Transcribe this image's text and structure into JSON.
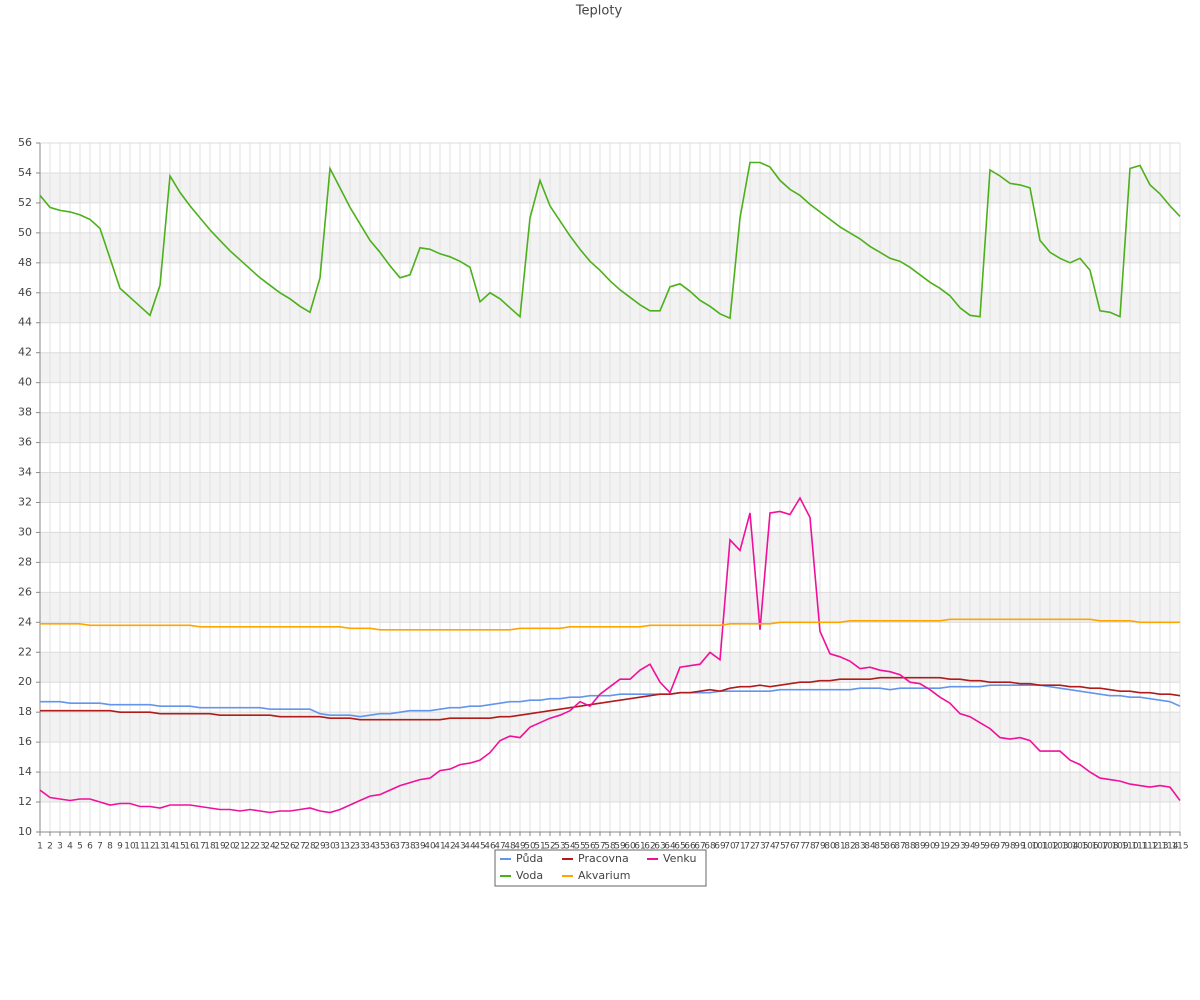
{
  "chart_data": {
    "type": "line",
    "title": "Teploty",
    "x": [
      1,
      2,
      3,
      4,
      5,
      6,
      7,
      8,
      9,
      10,
      11,
      12,
      13,
      14,
      15,
      16,
      17,
      18,
      19,
      20,
      21,
      22,
      23,
      24,
      25,
      26,
      27,
      28,
      29,
      30,
      31,
      32,
      33,
      34,
      35,
      36,
      37,
      38,
      39,
      40,
      41,
      42,
      43,
      44,
      45,
      46,
      47,
      48,
      49,
      50,
      51,
      52,
      53,
      54,
      55,
      56,
      57,
      58,
      59,
      60,
      61,
      62,
      63,
      64,
      65,
      66,
      67,
      68,
      69,
      70,
      71,
      72,
      73,
      74,
      75,
      76,
      77,
      78,
      79,
      80,
      81,
      82,
      83,
      84,
      85,
      86,
      87,
      88,
      89,
      90,
      91,
      92,
      93,
      94,
      95,
      96,
      97,
      98,
      99,
      100,
      101,
      102,
      103,
      104,
      105,
      106,
      107,
      108,
      109,
      110,
      111,
      112,
      113,
      114,
      115
    ],
    "xlim": [
      1,
      115
    ],
    "ylim": [
      10,
      56
    ],
    "yticks": [
      10,
      12,
      14,
      16,
      18,
      20,
      22,
      24,
      26,
      28,
      30,
      32,
      34,
      36,
      38,
      40,
      42,
      44,
      46,
      48,
      50,
      52,
      54,
      56
    ],
    "grid": true,
    "legend": "bottom",
    "series": [
      {
        "name": "Půda",
        "color": "#6495ed",
        "values": [
          18.7,
          18.7,
          18.7,
          18.6,
          18.6,
          18.6,
          18.6,
          18.5,
          18.5,
          18.5,
          18.5,
          18.5,
          18.4,
          18.4,
          18.4,
          18.4,
          18.3,
          18.3,
          18.3,
          18.3,
          18.3,
          18.3,
          18.3,
          18.2,
          18.2,
          18.2,
          18.2,
          18.2,
          17.9,
          17.8,
          17.8,
          17.8,
          17.7,
          17.8,
          17.9,
          17.9,
          18.0,
          18.1,
          18.1,
          18.1,
          18.2,
          18.3,
          18.3,
          18.4,
          18.4,
          18.5,
          18.6,
          18.7,
          18.7,
          18.8,
          18.8,
          18.9,
          18.9,
          19.0,
          19.0,
          19.1,
          19.1,
          19.1,
          19.2,
          19.2,
          19.2,
          19.2,
          19.2,
          19.2,
          19.3,
          19.3,
          19.3,
          19.3,
          19.4,
          19.4,
          19.4,
          19.4,
          19.4,
          19.4,
          19.5,
          19.5,
          19.5,
          19.5,
          19.5,
          19.5,
          19.5,
          19.5,
          19.6,
          19.6,
          19.6,
          19.5,
          19.6,
          19.6,
          19.6,
          19.6,
          19.6,
          19.7,
          19.7,
          19.7,
          19.7,
          19.8,
          19.8,
          19.8,
          19.8,
          19.8,
          19.8,
          19.7,
          19.6,
          19.5,
          19.4,
          19.3,
          19.2,
          19.1,
          19.1,
          19.0,
          19.0,
          18.9,
          18.8,
          18.7,
          18.4
        ]
      },
      {
        "name": "Pracovna",
        "color": "#b01c1c",
        "values": [
          18.1,
          18.1,
          18.1,
          18.1,
          18.1,
          18.1,
          18.1,
          18.1,
          18.0,
          18.0,
          18.0,
          18.0,
          17.9,
          17.9,
          17.9,
          17.9,
          17.9,
          17.9,
          17.8,
          17.8,
          17.8,
          17.8,
          17.8,
          17.8,
          17.7,
          17.7,
          17.7,
          17.7,
          17.7,
          17.6,
          17.6,
          17.6,
          17.5,
          17.5,
          17.5,
          17.5,
          17.5,
          17.5,
          17.5,
          17.5,
          17.5,
          17.6,
          17.6,
          17.6,
          17.6,
          17.6,
          17.7,
          17.7,
          17.8,
          17.9,
          18.0,
          18.1,
          18.2,
          18.3,
          18.4,
          18.5,
          18.6,
          18.7,
          18.8,
          18.9,
          19.0,
          19.1,
          19.2,
          19.2,
          19.3,
          19.3,
          19.4,
          19.5,
          19.4,
          19.6,
          19.7,
          19.7,
          19.8,
          19.7,
          19.8,
          19.9,
          20.0,
          20.0,
          20.1,
          20.1,
          20.2,
          20.2,
          20.2,
          20.2,
          20.3,
          20.3,
          20.3,
          20.3,
          20.3,
          20.3,
          20.3,
          20.2,
          20.2,
          20.1,
          20.1,
          20.0,
          20.0,
          20.0,
          19.9,
          19.9,
          19.8,
          19.8,
          19.8,
          19.7,
          19.7,
          19.6,
          19.6,
          19.5,
          19.4,
          19.4,
          19.3,
          19.3,
          19.2,
          19.2,
          19.1
        ]
      },
      {
        "name": "Venku",
        "color": "#f0109a",
        "values": [
          12.8,
          12.3,
          12.2,
          12.1,
          12.2,
          12.2,
          12.0,
          11.8,
          11.9,
          11.9,
          11.7,
          11.7,
          11.6,
          11.8,
          11.8,
          11.8,
          11.7,
          11.6,
          11.5,
          11.5,
          11.4,
          11.5,
          11.4,
          11.3,
          11.4,
          11.4,
          11.5,
          11.6,
          11.4,
          11.3,
          11.5,
          11.8,
          12.1,
          12.4,
          12.5,
          12.8,
          13.1,
          13.3,
          13.5,
          13.6,
          14.1,
          14.2,
          14.5,
          14.6,
          14.8,
          15.3,
          16.1,
          16.4,
          16.3,
          17.0,
          17.3,
          17.6,
          17.8,
          18.1,
          18.7,
          18.4,
          19.2,
          19.7,
          20.2,
          20.2,
          20.8,
          21.2,
          20.0,
          19.3,
          21.0,
          21.1,
          21.2,
          22.0,
          21.5,
          29.5,
          28.8,
          31.3,
          23.5,
          31.3,
          31.4,
          31.2,
          32.3,
          31.0,
          23.4,
          21.9,
          21.7,
          21.4,
          20.9,
          21.0,
          20.8,
          20.7,
          20.5,
          20.0,
          19.9,
          19.5,
          19.0,
          18.6,
          17.9,
          17.7,
          17.3,
          16.9,
          16.3,
          16.2,
          16.3,
          16.1,
          15.4,
          15.4,
          15.4,
          14.8,
          14.5,
          14.0,
          13.6,
          13.5,
          13.4,
          13.2,
          13.1,
          13.0,
          13.1,
          13.0,
          12.1
        ]
      },
      {
        "name": "Voda",
        "color": "#4cb01a",
        "values": [
          52.5,
          51.7,
          51.5,
          51.4,
          51.2,
          50.9,
          50.3,
          48.3,
          46.3,
          45.7,
          45.1,
          44.5,
          46.5,
          53.8,
          52.7,
          51.8,
          51.0,
          50.2,
          49.5,
          48.8,
          48.2,
          47.6,
          47.0,
          46.5,
          46.0,
          45.6,
          45.1,
          44.7,
          47.0,
          54.3,
          53.0,
          51.7,
          50.6,
          49.5,
          48.7,
          47.8,
          47.0,
          47.2,
          49.0,
          48.9,
          48.6,
          48.4,
          48.1,
          47.7,
          45.4,
          46.0,
          45.6,
          45.0,
          44.4,
          51.0,
          53.5,
          51.8,
          50.8,
          49.8,
          48.9,
          48.1,
          47.5,
          46.8,
          46.2,
          45.7,
          45.2,
          44.8,
          44.8,
          46.4,
          46.6,
          46.1,
          45.5,
          45.1,
          44.6,
          44.3,
          51.0,
          54.7,
          54.7,
          54.4,
          53.5,
          52.9,
          52.5,
          51.9,
          51.4,
          50.9,
          50.4,
          50.0,
          49.6,
          49.1,
          48.7,
          48.3,
          48.1,
          47.7,
          47.2,
          46.7,
          46.3,
          45.8,
          45.0,
          44.5,
          44.4,
          54.2,
          53.8,
          53.3,
          53.2,
          53.0,
          49.5,
          48.7,
          48.3,
          48.0,
          48.3,
          47.5,
          44.8,
          44.7,
          44.4,
          54.3,
          54.5,
          53.2,
          52.6,
          51.8,
          51.1
        ]
      },
      {
        "name": "Akvarium",
        "color": "#ffa500",
        "values": [
          23.9,
          23.9,
          23.9,
          23.9,
          23.9,
          23.8,
          23.8,
          23.8,
          23.8,
          23.8,
          23.8,
          23.8,
          23.8,
          23.8,
          23.8,
          23.8,
          23.7,
          23.7,
          23.7,
          23.7,
          23.7,
          23.7,
          23.7,
          23.7,
          23.7,
          23.7,
          23.7,
          23.7,
          23.7,
          23.7,
          23.7,
          23.6,
          23.6,
          23.6,
          23.5,
          23.5,
          23.5,
          23.5,
          23.5,
          23.5,
          23.5,
          23.5,
          23.5,
          23.5,
          23.5,
          23.5,
          23.5,
          23.5,
          23.6,
          23.6,
          23.6,
          23.6,
          23.6,
          23.7,
          23.7,
          23.7,
          23.7,
          23.7,
          23.7,
          23.7,
          23.7,
          23.8,
          23.8,
          23.8,
          23.8,
          23.8,
          23.8,
          23.8,
          23.8,
          23.9,
          23.9,
          23.9,
          23.9,
          23.9,
          24.0,
          24.0,
          24.0,
          24.0,
          24.0,
          24.0,
          24.0,
          24.1,
          24.1,
          24.1,
          24.1,
          24.1,
          24.1,
          24.1,
          24.1,
          24.1,
          24.1,
          24.2,
          24.2,
          24.2,
          24.2,
          24.2,
          24.2,
          24.2,
          24.2,
          24.2,
          24.2,
          24.2,
          24.2,
          24.2,
          24.2,
          24.2,
          24.1,
          24.1,
          24.1,
          24.1,
          24.0,
          24.0,
          24.0,
          24.0,
          24.0
        ]
      }
    ]
  }
}
